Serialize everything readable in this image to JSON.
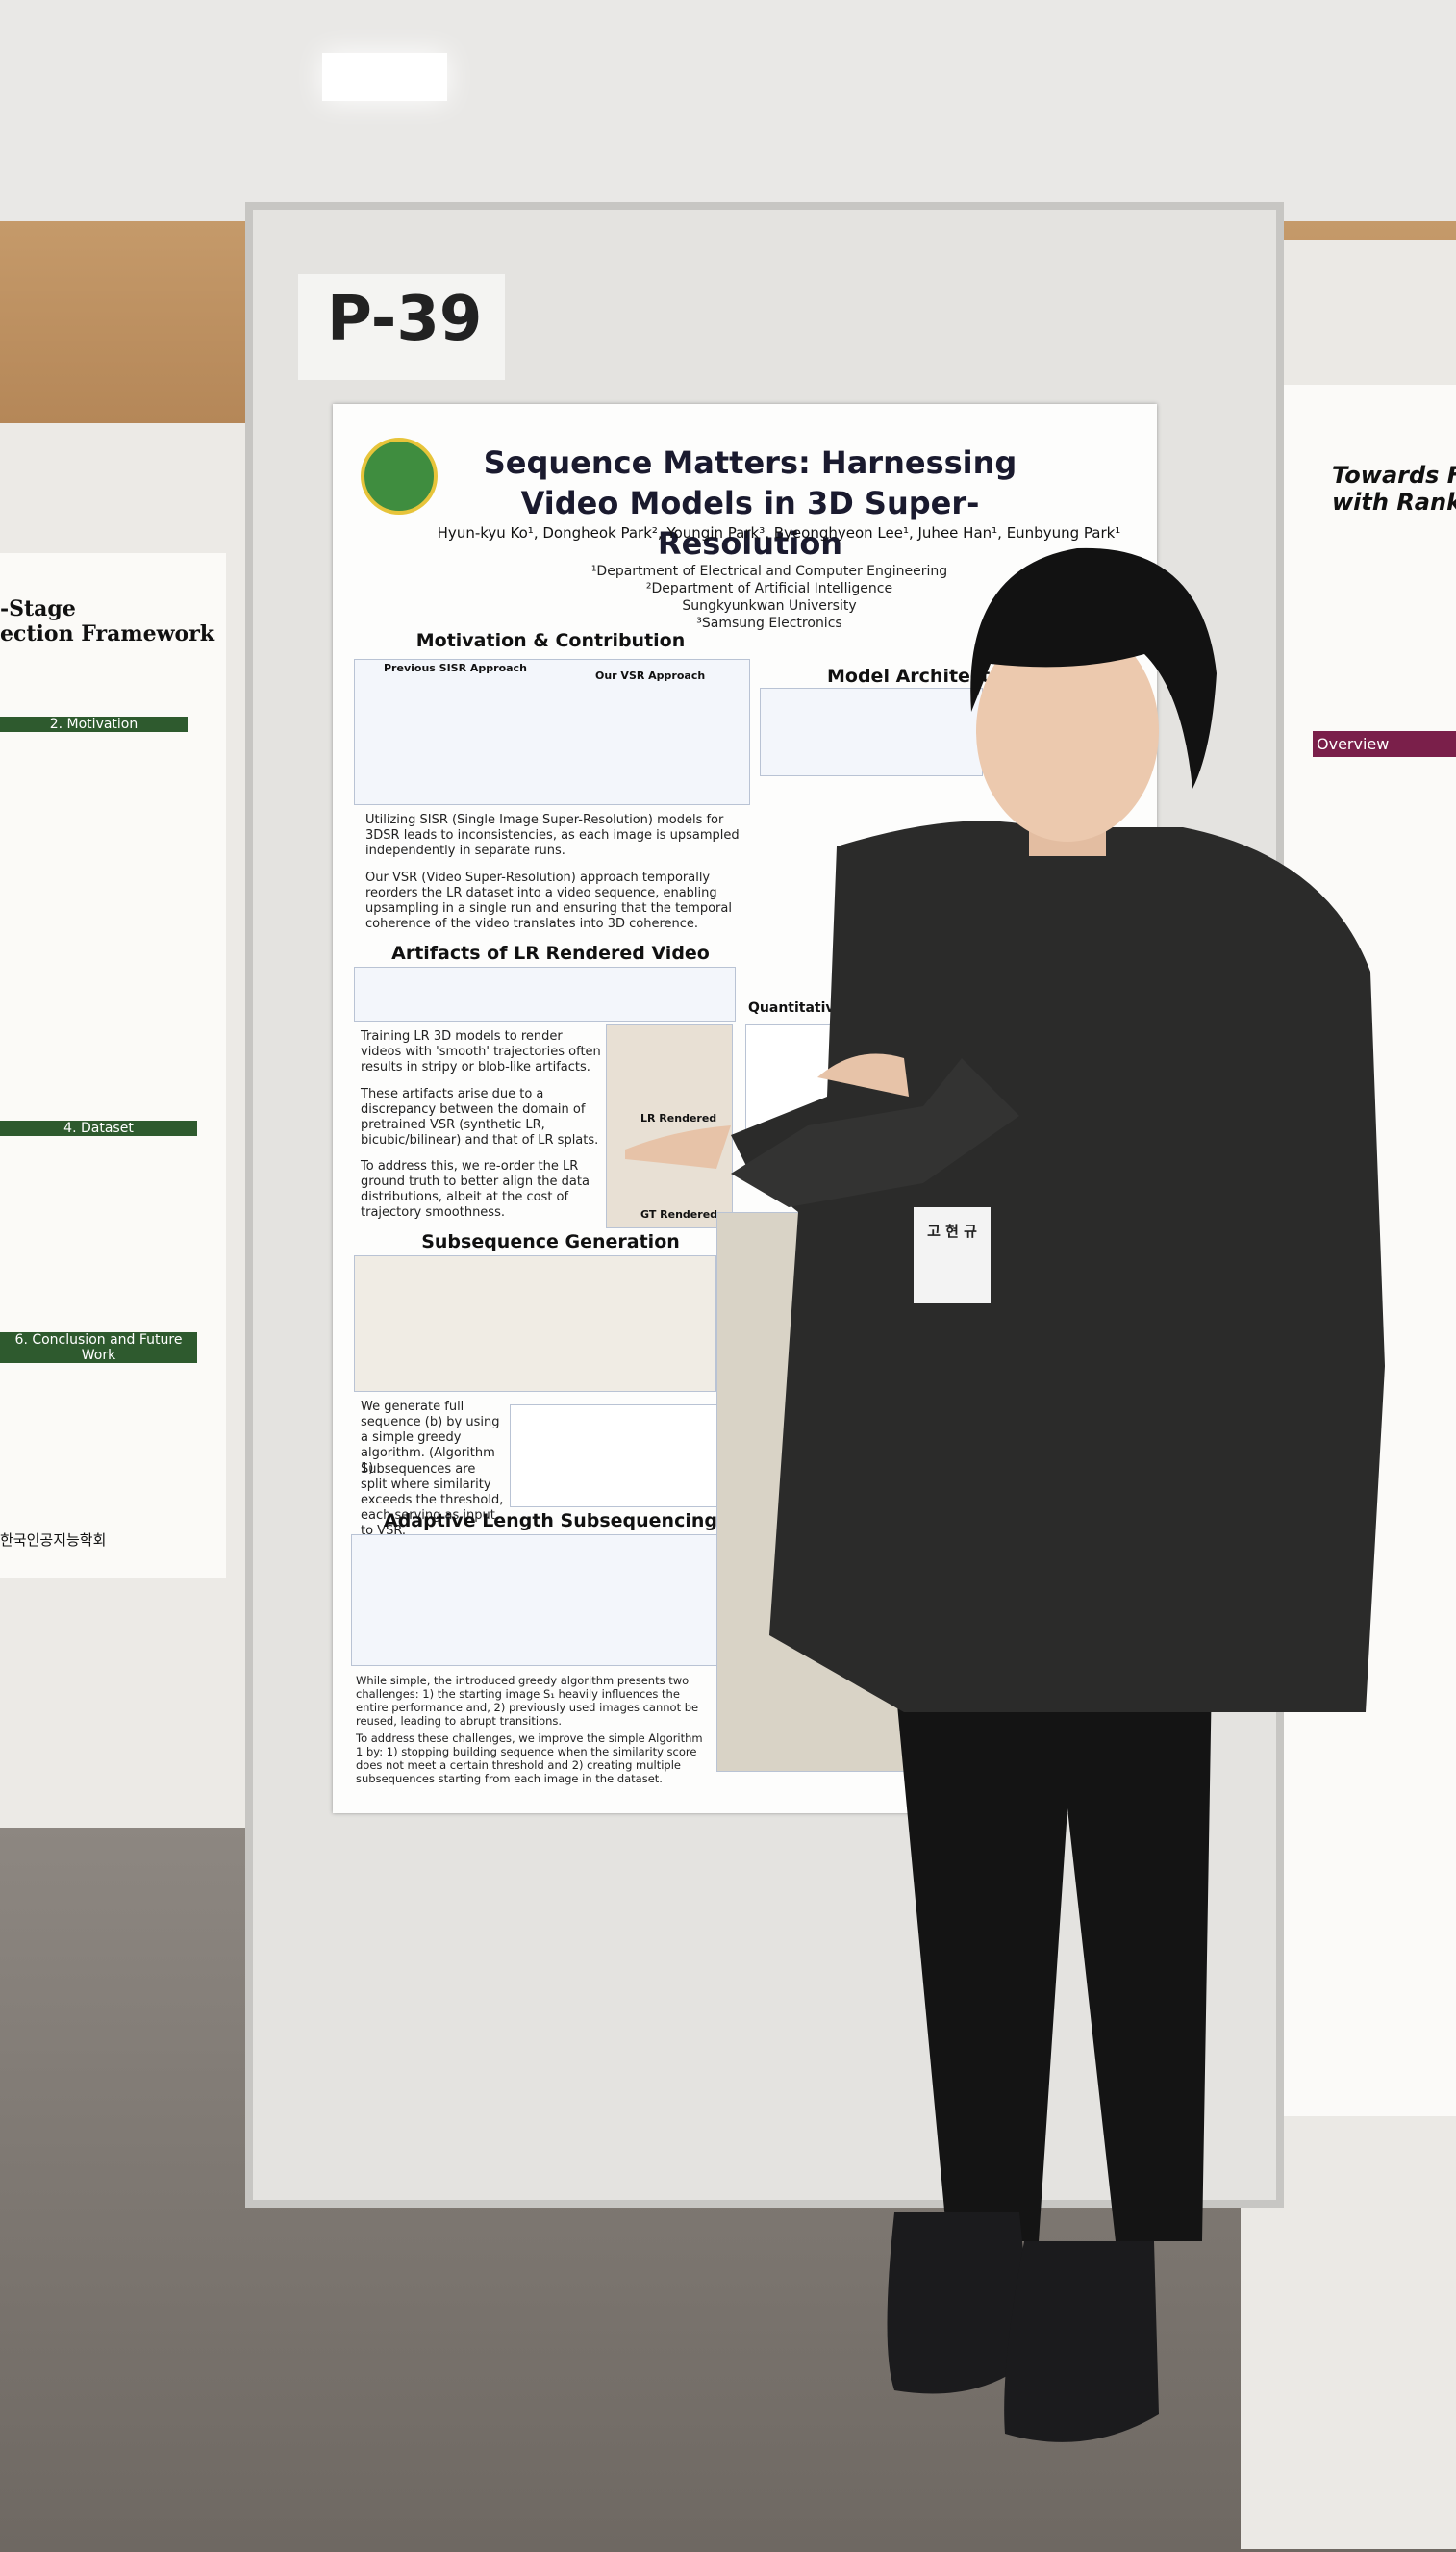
{
  "board_label": "P-39",
  "poster": {
    "title": "Sequence Matters: Harnessing Video Models in 3D Super-Resolution",
    "authors": "Hyun-kyu Ko¹, Dongheok Park², Youngin Park³, Byeonghyeon Lee¹, Juhee Han¹, Eunbyung Park¹",
    "affiliations": [
      "¹Department of Electrical and Computer Engineering",
      "²Department of Artificial Intelligence",
      "Sungkyunkwan University",
      "³Samsung Electronics"
    ],
    "sections": [
      "Motivation & Contribution",
      "Artifacts of LR Rendered Video",
      "Subsequence Generation",
      "Adaptive Length Subsequencing",
      "Model Architecture",
      "Quantitative"
    ],
    "bullets": [
      "Utilizing SISR (Single Image Super-Resolution) models for 3DSR leads to inconsistencies, as each image is upsampled independently in separate runs.",
      "Our VSR (Video Super-Resolution) approach temporally reorders the LR dataset into a video sequence, enabling upsampling in a single run and ensuring that the temporal coherence of the video translates into 3D coherence.",
      "Training LR 3D models to render videos with 'smooth' trajectories often results in stripy or blob-like artifacts.",
      "These artifacts arise due to a discrepancy between the domain of pretrained VSR (synthetic LR, bicubic/bilinear) and that of LR splats.",
      "To address this, we re-order the LR ground truth to better align the data distributions, albeit at the cost of trajectory smoothness.",
      "We generate full sequence (b) by using a simple greedy algorithm. (Algorithm 1)",
      "Subsequences are split where similarity exceeds the threshold, each serving as input to VSR.",
      "While simple, the introduced greedy algorithm presents two challenges: 1) the starting image S₁ heavily influences the entire performance and, 2) previously used images cannot be reused, leading to abrupt transitions.",
      "To address these challenges, we improve the simple Algorithm 1 by: 1) stopping building sequence when the similarity score does not meet a certain threshold and 2) creating multiple subsequences starting from each image in the dataset."
    ],
    "figure_labels": [
      "Previous SISR Approach",
      "Our VSR Approach",
      "LR Rendered",
      "GT Rendered"
    ]
  },
  "left_poster": {
    "title": "-Stage\nection Framework",
    "sections": [
      "2. Motivation",
      "4. Dataset",
      "6. Conclusion and Future Work"
    ],
    "society": "한국인공지능학회"
  },
  "right_poster": {
    "title": "Towards Fede\nwith Rank Het",
    "sections": [
      "Overview"
    ]
  },
  "badge": "고 현 규"
}
